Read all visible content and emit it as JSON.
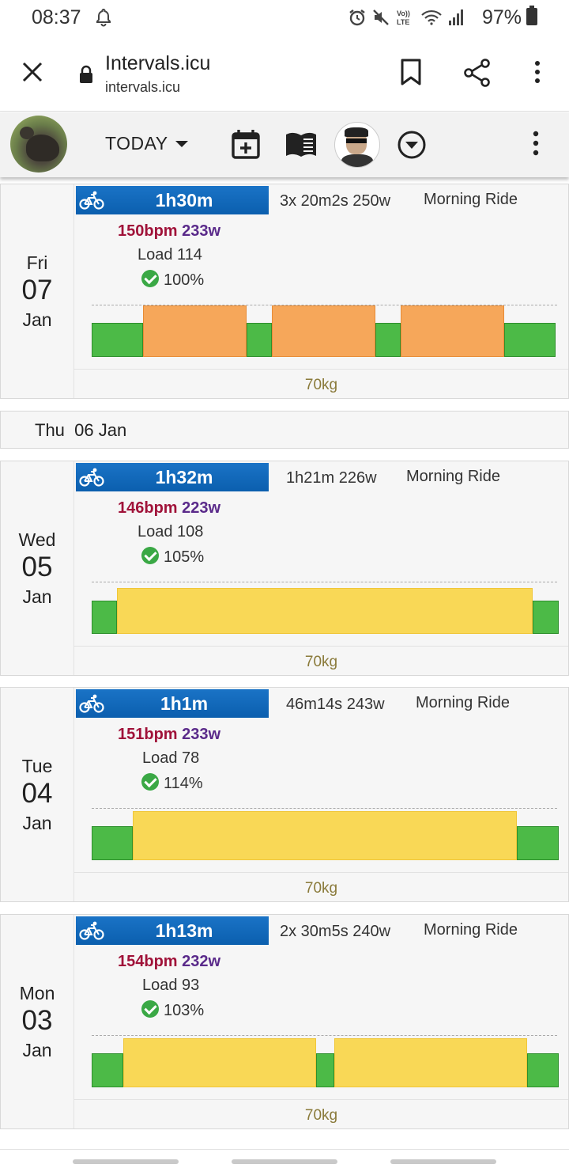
{
  "status": {
    "time": "08:37",
    "battery": "97%",
    "icons": [
      "bell-icon",
      "alarm-icon",
      "mute-icon",
      "volte-icon",
      "wifi-icon",
      "signal-icon",
      "battery-icon"
    ]
  },
  "browser": {
    "title": "Intervals.icu",
    "host": "intervals.icu"
  },
  "toolbar": {
    "today_label": "TODAY"
  },
  "days": [
    {
      "dow": "Fri",
      "day": "07",
      "month": "Jan",
      "activity": {
        "duration": "1h30m",
        "summary": "3x 20m2s 250w",
        "name": "Morning Ride",
        "hr": "150bpm",
        "power": "233w",
        "load": "Load 114",
        "compliance": "100%",
        "weight": "70kg",
        "segments": [
          {
            "zone": "z2",
            "dur": 0.11,
            "level": 0.65
          },
          {
            "zone": "z4",
            "dur": 0.222,
            "level": 0.98
          },
          {
            "zone": "z2",
            "dur": 0.054,
            "level": 0.65
          },
          {
            "zone": "z4",
            "dur": 0.222,
            "level": 0.98
          },
          {
            "zone": "z2",
            "dur": 0.054,
            "level": 0.65
          },
          {
            "zone": "z4",
            "dur": 0.222,
            "level": 0.98
          },
          {
            "zone": "z2",
            "dur": 0.11,
            "level": 0.65
          }
        ]
      }
    },
    {
      "dow": "Wed",
      "day": "05",
      "month": "Jan",
      "activity": {
        "duration": "1h32m",
        "summary": "1h21m 226w",
        "name": "Morning Ride",
        "hr": "146bpm",
        "power": "223w",
        "load": "Load 108",
        "compliance": "105%",
        "weight": "70kg",
        "segments": [
          {
            "zone": "z2",
            "dur": 0.054,
            "level": 0.72
          },
          {
            "zone": "z3",
            "dur": 0.89,
            "level": 1.0
          },
          {
            "zone": "z2",
            "dur": 0.056,
            "level": 0.72
          }
        ]
      }
    },
    {
      "dow": "Tue",
      "day": "04",
      "month": "Jan",
      "activity": {
        "duration": "1h1m",
        "summary": "46m14s 243w",
        "name": "Morning Ride",
        "hr": "151bpm",
        "power": "233w",
        "load": "Load 78",
        "compliance": "114%",
        "weight": "70kg",
        "segments": [
          {
            "zone": "z2",
            "dur": 0.088,
            "level": 0.7
          },
          {
            "zone": "z3",
            "dur": 0.822,
            "level": 1.0
          },
          {
            "zone": "z2",
            "dur": 0.09,
            "level": 0.7
          }
        ]
      }
    },
    {
      "dow": "Mon",
      "day": "03",
      "month": "Jan",
      "activity": {
        "duration": "1h13m",
        "summary": "2x 30m5s 240w",
        "name": "Morning Ride",
        "hr": "154bpm",
        "power": "232w",
        "load": "Load 93",
        "compliance": "103%",
        "weight": "70kg",
        "segments": [
          {
            "zone": "z2",
            "dur": 0.068,
            "level": 0.7
          },
          {
            "zone": "z3",
            "dur": 0.412,
            "level": 1.0
          },
          {
            "zone": "z2",
            "dur": 0.04,
            "level": 0.7
          },
          {
            "zone": "z3",
            "dur": 0.412,
            "level": 1.0
          },
          {
            "zone": "z2",
            "dur": 0.068,
            "level": 0.7
          }
        ]
      }
    }
  ],
  "empty_day": {
    "dow": "Thu",
    "date": "06 Jan"
  },
  "colors": {
    "duration_bar": "#0b5fae",
    "zone_green": "#4cba47",
    "zone_orange": "#f6a75a",
    "zone_yellow": "#f9d856",
    "hr_text": "#a01239",
    "power_text": "#5a2a8a",
    "weight_text": "#8a7a3a"
  }
}
